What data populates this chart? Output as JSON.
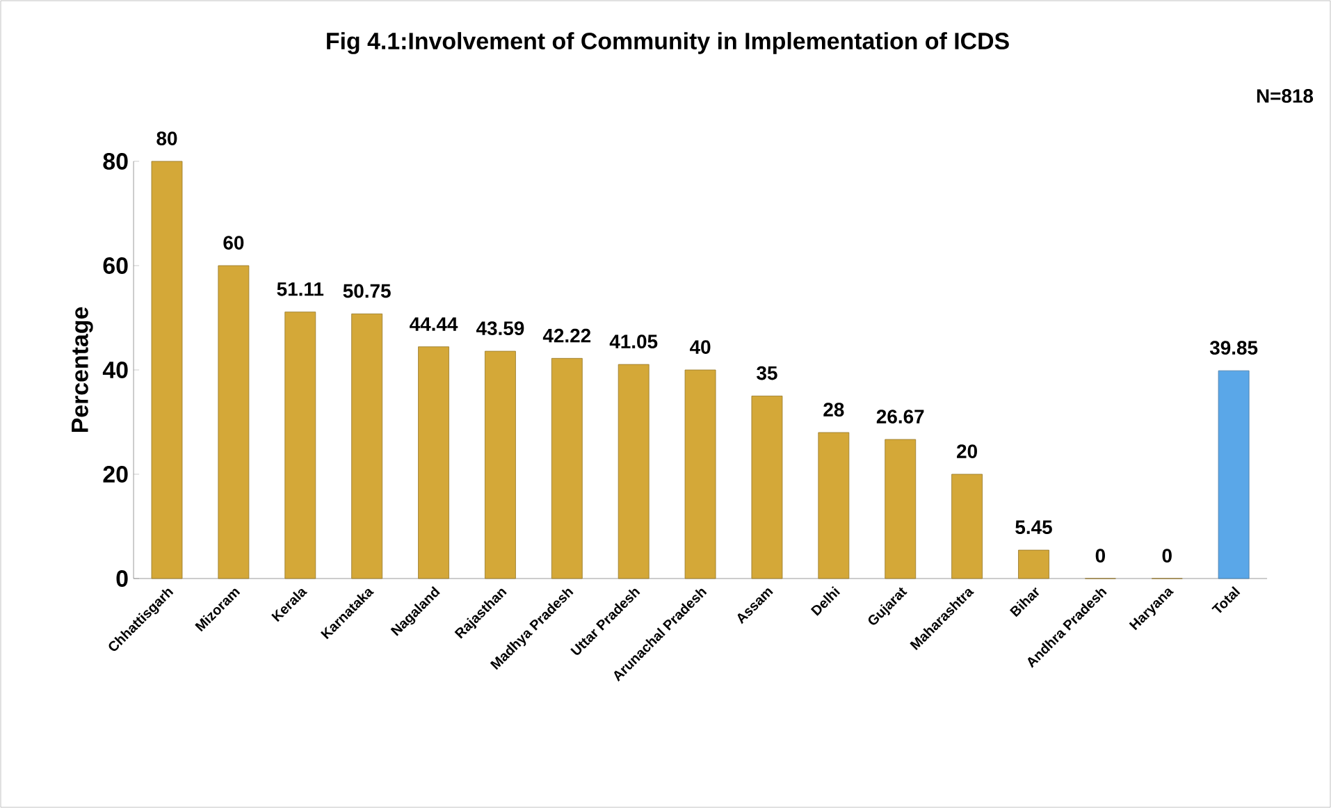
{
  "chart_data": {
    "type": "bar",
    "title": "Fig 4.1:Involvement of Community in Implementation of ICDS",
    "ylabel": "Percentage",
    "annotations": [
      "N=818"
    ],
    "categories": [
      "Chhattisgarh",
      "Mizoram",
      "Kerala",
      "Karnataka",
      "Nagaland",
      "Rajasthan",
      "Madhya Pradesh",
      "Uttar Pradesh",
      "Arunachal Pradesh",
      "Assam",
      "Delhi",
      "Gujarat",
      "Maharashtra",
      "Bihar",
      "Andhra Pradesh",
      "Haryana",
      "Total"
    ],
    "values": [
      80,
      60,
      51.11,
      50.75,
      44.44,
      43.59,
      42.22,
      41.05,
      40,
      35,
      28,
      26.67,
      20,
      5.45,
      0,
      0,
      39.85
    ],
    "colors": [
      "#d4a838",
      "#d4a838",
      "#d4a838",
      "#d4a838",
      "#d4a838",
      "#d4a838",
      "#d4a838",
      "#d4a838",
      "#d4a838",
      "#d4a838",
      "#d4a838",
      "#d4a838",
      "#d4a838",
      "#d4a838",
      "#d4a838",
      "#d4a838",
      "#5aa7e8"
    ],
    "ylim": [
      0,
      80
    ],
    "yticks": [
      0,
      20,
      40,
      60,
      80
    ],
    "data_labels": true,
    "grid": false
  }
}
